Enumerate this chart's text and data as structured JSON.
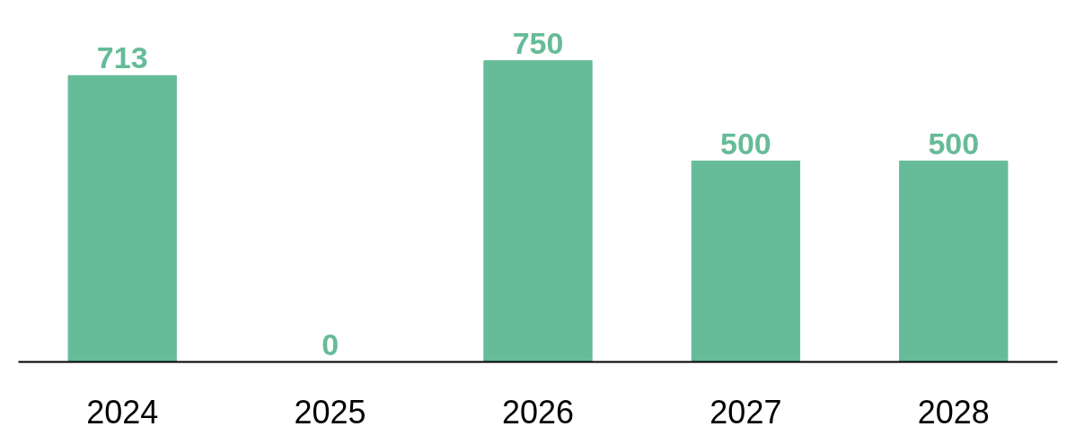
{
  "chart_data": {
    "type": "bar",
    "categories": [
      "2024",
      "2025",
      "2026",
      "2027",
      "2028"
    ],
    "values": [
      713,
      0,
      750,
      500,
      500
    ],
    "color": "#66bb99",
    "data_labels": true
  }
}
